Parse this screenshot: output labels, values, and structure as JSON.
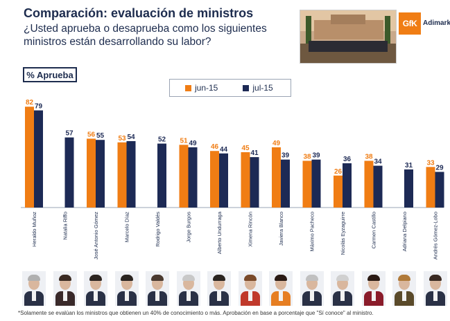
{
  "header": {
    "title": "Comparación: evaluación de ministros",
    "subtitle": "¿Usted aprueba o desaprueba como los siguientes ministros están desarrollando su labor?",
    "logo_mark": "GfK",
    "logo_text": "Adimark"
  },
  "badge": "% Aprueba",
  "colors": {
    "jun": "#f07d14",
    "jul": "#1d2a55",
    "navy_text": "#1d2c4e"
  },
  "chart_data": {
    "type": "bar",
    "title": "Comparación: evaluación de ministros",
    "ylabel": "% Aprueba",
    "ylim": [
      0,
      90
    ],
    "grid": false,
    "legend_position": "top-center",
    "categories": [
      "Heraldo Muñoz",
      "Natalia Riffo",
      "José Antonio Gómez",
      "Marcelo Díaz",
      "Rodrigo Valdés",
      "Jorge Burgos",
      "Alberto Undurraga",
      "Ximena Rincón",
      "Javiera Blanco",
      "Máximo Pacheco",
      "Nicolás Eyzaguirre",
      "Carmen Castillo",
      "Adriana Delpiano",
      "Andrés Gómez-Lobo"
    ],
    "series": [
      {
        "name": "jun-15",
        "values": [
          82,
          null,
          56,
          53,
          null,
          51,
          46,
          45,
          49,
          38,
          26,
          38,
          null,
          33
        ]
      },
      {
        "name": "jul-15",
        "values": [
          79,
          57,
          55,
          54,
          52,
          49,
          44,
          41,
          39,
          39,
          36,
          34,
          31,
          29
        ]
      }
    ]
  },
  "footnote": "*Solamente se evalúan los ministros que obtienen un 40% de conocimiento o más. Aprobación en base a porcentaje que \"Sí conoce\" al ministro."
}
